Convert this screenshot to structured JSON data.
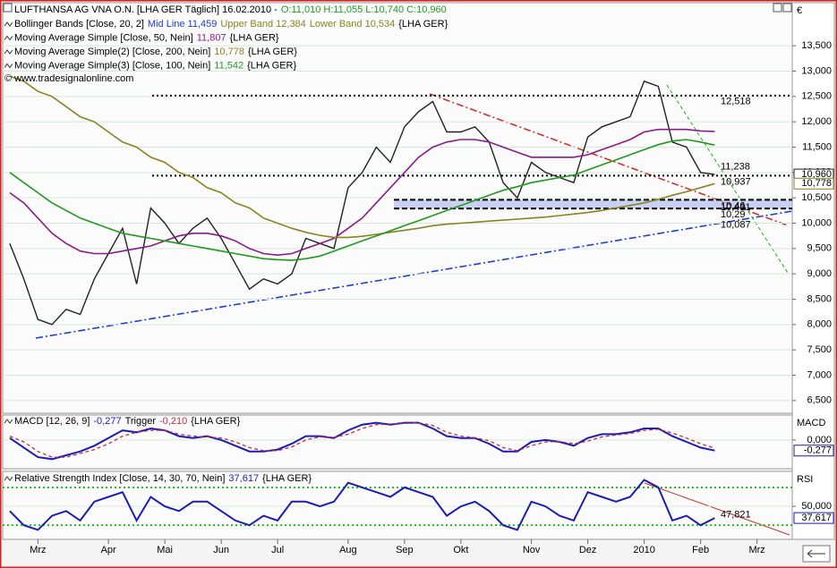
{
  "chart_data": [
    {
      "type": "line",
      "title": "LUFTHANSA AG VNA O.N. [LHA GER  Täglich] 16.02.2010  -",
      "subtitle": "O:11,010 H:11,055 L:10,740 C:10,960",
      "currency": "€",
      "source": "© www.tradesignalonline.com",
      "legend": [
        [
          {
            "text": "Bollinger Bands [Close, 20, 2]",
            "color": "#000000"
          },
          {
            "text": "Mid Line 11,459",
            "color": "#1c3fcf"
          },
          {
            "text": "Upper Band 12,384",
            "color": "#8a8420"
          },
          {
            "text": "Lower Band 10,534",
            "color": "#8a8420"
          },
          {
            "text": "{LHA GER}",
            "color": "#000000"
          }
        ],
        [
          {
            "text": "Moving Average Simple [Close, 50, Nein]",
            "color": "#000000"
          },
          {
            "text": "11,807",
            "color": "#8b1a8b"
          },
          {
            "text": "{LHA GER}",
            "color": "#000000"
          }
        ],
        [
          {
            "text": "Moving Average Simple(2) [Close, 200, Nein]",
            "color": "#000000"
          },
          {
            "text": "10,778",
            "color": "#8a8420"
          },
          {
            "text": "{LHA GER}",
            "color": "#000000"
          }
        ],
        [
          {
            "text": "Moving Average Simple(3) [Close, 100, Nein]",
            "color": "#000000"
          },
          {
            "text": "11,542",
            "color": "#1f9a1f"
          },
          {
            "text": "{LHA GER}",
            "color": "#000000"
          }
        ]
      ],
      "ylim": [
        6.25,
        14.35
      ],
      "yticks": [
        {
          "value": 6.5,
          "label": "6,500"
        },
        {
          "value": 7,
          "label": "7,000"
        },
        {
          "value": 7.5,
          "label": "7,500"
        },
        {
          "value": 8,
          "label": "8,000"
        },
        {
          "value": 8.5,
          "label": "8,500"
        },
        {
          "value": 9,
          "label": "9,000"
        },
        {
          "value": 9.5,
          "label": "9,500"
        },
        {
          "value": 10,
          "label": "10,000"
        },
        {
          "value": 10.5,
          "label": "10,500"
        },
        {
          "value": 11,
          "label": "11,000"
        },
        {
          "value": 11.5,
          "label": "11,500"
        },
        {
          "value": 12,
          "label": "12,000"
        },
        {
          "value": 12.5,
          "label": "12,500"
        },
        {
          "value": 13,
          "label": "13,000"
        },
        {
          "value": 13.5,
          "label": "13,500"
        }
      ],
      "grid": true,
      "series": [
        {
          "color": "#222222",
          "width": 1.4,
          "last_label": "10,960",
          "values": [
            9.6,
            8.9,
            8.1,
            8.0,
            8.3,
            8.2,
            8.9,
            9.4,
            9.9,
            8.8,
            10.3,
            10.0,
            9.6,
            9.9,
            10.1,
            9.7,
            9.2,
            8.7,
            8.9,
            8.8,
            9.0,
            9.7,
            9.6,
            9.5,
            10.7,
            11.0,
            11.5,
            11.2,
            11.9,
            12.2,
            12.4,
            11.8,
            11.8,
            11.9,
            11.6,
            10.8,
            10.5,
            11.2,
            11.0,
            10.9,
            10.8,
            11.7,
            11.9,
            12.0,
            12.1,
            12.8,
            12.7,
            11.6,
            11.5,
            11.0,
            10.96,
            null,
            null,
            null,
            null,
            null
          ]
        },
        {
          "color": "#8b1a8b",
          "width": 1.6,
          "values": [
            10.6,
            10.4,
            10.1,
            9.8,
            9.6,
            9.45,
            9.4,
            9.4,
            9.45,
            9.5,
            9.55,
            9.65,
            9.75,
            9.8,
            9.8,
            9.75,
            9.65,
            9.5,
            9.4,
            9.37,
            9.4,
            9.5,
            9.6,
            9.7,
            9.9,
            10.1,
            10.4,
            10.7,
            11.0,
            11.3,
            11.5,
            11.6,
            11.65,
            11.65,
            11.6,
            11.5,
            11.4,
            11.3,
            11.3,
            11.3,
            11.3,
            11.35,
            11.45,
            11.55,
            11.65,
            11.8,
            11.85,
            11.85,
            11.85,
            11.82,
            11.81,
            null,
            null,
            null,
            null,
            null
          ]
        },
        {
          "color": "#8a8420",
          "width": 1.6,
          "last_label": "10,778",
          "values": [
            12.9,
            12.8,
            12.6,
            12.5,
            12.3,
            12.1,
            12.0,
            11.8,
            11.6,
            11.5,
            11.3,
            11.2,
            11.0,
            10.9,
            10.7,
            10.6,
            10.4,
            10.3,
            10.1,
            10.0,
            9.9,
            9.82,
            9.76,
            9.72,
            9.72,
            9.74,
            9.78,
            9.82,
            9.86,
            9.9,
            9.95,
            9.98,
            10.0,
            10.02,
            10.04,
            10.06,
            10.08,
            10.1,
            10.12,
            10.15,
            10.18,
            10.21,
            10.25,
            10.3,
            10.35,
            10.4,
            10.47,
            10.55,
            10.62,
            10.7,
            10.78,
            null,
            null,
            null,
            null,
            null
          ]
        },
        {
          "color": "#1f9a1f",
          "width": 1.6,
          "values": [
            11.0,
            10.8,
            10.6,
            10.4,
            10.25,
            10.1,
            10.0,
            9.9,
            9.8,
            9.75,
            9.7,
            9.65,
            9.6,
            9.55,
            9.5,
            9.45,
            9.4,
            9.35,
            9.3,
            9.28,
            9.27,
            9.3,
            9.35,
            9.45,
            9.55,
            9.65,
            9.75,
            9.85,
            9.95,
            10.05,
            10.15,
            10.25,
            10.35,
            10.45,
            10.55,
            10.65,
            10.72,
            10.8,
            10.85,
            10.9,
            10.95,
            11.05,
            11.15,
            11.25,
            11.35,
            11.45,
            11.55,
            11.62,
            11.65,
            11.6,
            11.54,
            null,
            null,
            null,
            null,
            null
          ]
        }
      ],
      "annotations": [
        {
          "value": 12.518,
          "label": "12,518",
          "color": "#000000",
          "line": "dotted"
        },
        {
          "value": 11.238,
          "label": "11,238",
          "color": "#22aa22"
        },
        {
          "value": 10.937,
          "label": "10,937",
          "color": "#000000",
          "line": "dotted"
        },
        {
          "value": 10.431,
          "label": "10,431",
          "color": "#d03030"
        },
        {
          "value": 10.46,
          "label": "10,46",
          "color": "#000000",
          "line": "dashed"
        },
        {
          "value": 10.29,
          "label": "10,29",
          "color": "#000000",
          "line": "dashed"
        },
        {
          "value": 10.087,
          "label": "10,087",
          "color": "#1c3fcf"
        }
      ]
    },
    {
      "type": "line",
      "label": "MACD",
      "legend": [
        [
          {
            "text": "MACD [12, 26, 9]",
            "color": "#000000"
          },
          {
            "text": "-0,277",
            "color": "#1c1cb4"
          },
          {
            "text": "Trigger",
            "color": "#000000"
          },
          {
            "text": "-0,210",
            "color": "#c03040"
          },
          {
            "text": "{LHA GER}",
            "color": "#000000"
          }
        ]
      ],
      "ylim": [
        -0.75,
        0.65
      ],
      "yticks": [
        {
          "value": 0,
          "label": "0,000"
        }
      ],
      "grid": true,
      "series": [
        {
          "color": "#1c1cb4",
          "width": 2,
          "last_label": "-0,277",
          "values": [
            0.05,
            -0.2,
            -0.45,
            -0.5,
            -0.4,
            -0.3,
            -0.15,
            0.05,
            0.25,
            0.2,
            0.3,
            0.25,
            0.1,
            0.05,
            0.1,
            0.0,
            -0.15,
            -0.3,
            -0.3,
            -0.25,
            -0.1,
            0.1,
            0.1,
            0.05,
            0.25,
            0.4,
            0.45,
            0.4,
            0.45,
            0.45,
            0.3,
            0.1,
            0.05,
            0.05,
            -0.1,
            -0.3,
            -0.3,
            -0.05,
            0.0,
            -0.05,
            -0.15,
            0.05,
            0.15,
            0.15,
            0.2,
            0.3,
            0.3,
            0.1,
            -0.05,
            -0.2,
            -0.277,
            null,
            null,
            null,
            null,
            null
          ]
        },
        {
          "color": "#c03040",
          "width": 1.3,
          "dash": true,
          "values": [
            0.1,
            -0.05,
            -0.3,
            -0.45,
            -0.45,
            -0.35,
            -0.25,
            -0.1,
            0.1,
            0.2,
            0.25,
            0.25,
            0.15,
            0.1,
            0.08,
            0.05,
            -0.05,
            -0.2,
            -0.28,
            -0.28,
            -0.18,
            0.0,
            0.08,
            0.07,
            0.15,
            0.3,
            0.4,
            0.42,
            0.43,
            0.45,
            0.38,
            0.2,
            0.1,
            0.06,
            -0.02,
            -0.2,
            -0.28,
            -0.15,
            -0.05,
            -0.04,
            -0.1,
            -0.03,
            0.08,
            0.13,
            0.17,
            0.25,
            0.28,
            0.18,
            0.05,
            -0.1,
            -0.21,
            null,
            null,
            null,
            null,
            null
          ]
        }
      ]
    },
    {
      "type": "line",
      "label": "RSI",
      "legend": [
        [
          {
            "text": "Relative Strength Index [Close, 14, 30, 70, Nein]",
            "color": "#000000"
          },
          {
            "text": "37,617",
            "color": "#1c1cb4"
          },
          {
            "text": "{LHA GER}",
            "color": "#000000"
          }
        ]
      ],
      "ylim": [
        15,
        87
      ],
      "yticks": [
        {
          "value": 50,
          "label": "50,000"
        }
      ],
      "grid": true,
      "levels": [
        30,
        70
      ],
      "categories": [
        null,
        null,
        "Mrz",
        null,
        null,
        null,
        null,
        "Apr",
        null,
        null,
        null,
        "Mai",
        null,
        null,
        null,
        "Jun",
        null,
        null,
        null,
        "Jul",
        null,
        null,
        null,
        null,
        "Aug",
        null,
        null,
        null,
        "Sep",
        null,
        null,
        null,
        "Okt",
        null,
        null,
        null,
        null,
        "Nov",
        null,
        null,
        null,
        "Dez",
        null,
        null,
        null,
        "2010",
        null,
        null,
        null,
        "Feb",
        null,
        null,
        null,
        "Mrz",
        null,
        null
      ],
      "series": [
        {
          "color": "#1c1cb4",
          "width": 2,
          "last_label": "37,617",
          "values": [
            45,
            30,
            25,
            40,
            45,
            35,
            55,
            60,
            65,
            35,
            60,
            50,
            45,
            55,
            55,
            45,
            35,
            30,
            40,
            35,
            55,
            55,
            50,
            55,
            75,
            70,
            65,
            60,
            70,
            65,
            60,
            40,
            50,
            55,
            45,
            30,
            25,
            55,
            50,
            40,
            35,
            65,
            60,
            55,
            60,
            78,
            70,
            35,
            40,
            30,
            37.617,
            null,
            null,
            null,
            null,
            null
          ]
        }
      ],
      "annotations": [
        {
          "value": 47.821,
          "label": "47,821",
          "color": "#d03030"
        }
      ]
    }
  ]
}
